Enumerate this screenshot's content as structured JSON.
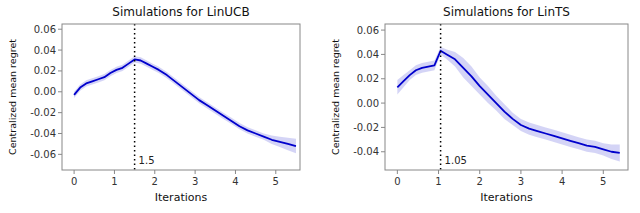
{
  "chart_data": [
    {
      "type": "line",
      "title": "Simulations for LinUCB",
      "x_label": "Iterations",
      "y_label": "Centralized mean regret",
      "x": [
        0.0,
        0.15,
        0.3,
        0.45,
        0.6,
        0.75,
        0.9,
        1.05,
        1.2,
        1.35,
        1.5,
        1.65,
        1.8,
        1.95,
        2.1,
        2.3,
        2.5,
        2.7,
        2.9,
        3.1,
        3.3,
        3.5,
        3.7,
        3.9,
        4.1,
        4.3,
        4.5,
        4.7,
        4.9,
        5.1,
        5.3,
        5.5
      ],
      "series": [
        {
          "type": "band",
          "color": "#aaaaee",
          "values": [
            -0.003,
            0.004,
            0.008,
            0.01,
            0.012,
            0.014,
            0.018,
            0.021,
            0.023,
            0.027,
            0.031,
            0.03,
            0.027,
            0.024,
            0.021,
            0.016,
            0.01,
            0.004,
            -0.002,
            -0.008,
            -0.013,
            -0.018,
            -0.023,
            -0.028,
            -0.033,
            -0.037,
            -0.04,
            -0.043,
            -0.046,
            -0.048,
            -0.05,
            -0.052
          ],
          "std": [
            0.003,
            0.003,
            0.003,
            0.003,
            0.003,
            0.003,
            0.003,
            0.003,
            0.003,
            0.003,
            0.003,
            0.003,
            0.003,
            0.003,
            0.003,
            0.003,
            0.003,
            0.003,
            0.003,
            0.003,
            0.003,
            0.003,
            0.003,
            0.003,
            0.003,
            0.003,
            0.003,
            0.003,
            0.004,
            0.005,
            0.006,
            0.007
          ]
        },
        {
          "type": "line",
          "color": "#0000cc",
          "values": [
            -0.003,
            0.004,
            0.008,
            0.01,
            0.012,
            0.014,
            0.018,
            0.021,
            0.023,
            0.027,
            0.031,
            0.03,
            0.027,
            0.024,
            0.021,
            0.016,
            0.01,
            0.004,
            -0.002,
            -0.008,
            -0.013,
            -0.018,
            -0.023,
            -0.028,
            -0.033,
            -0.037,
            -0.04,
            -0.043,
            -0.046,
            -0.048,
            -0.05,
            -0.052
          ]
        }
      ],
      "annotations": [
        {
          "x": 1.5,
          "label": "1.5",
          "color": "black",
          "line_style": "dotted"
        }
      ],
      "xlim": [
        -0.3,
        5.6
      ],
      "ylim": [
        -0.075,
        0.065
      ],
      "xticks": [
        0,
        1,
        2,
        3,
        4,
        5
      ],
      "yticks": [
        -0.06,
        -0.04,
        -0.02,
        {
          "value": 0,
          "label": "0.00"
        },
        0.02,
        0.04,
        0.06
      ],
      "grid": false
    },
    {
      "type": "line",
      "title": "Simulations for LinTS",
      "x_label": "Iterations",
      "y_label": "Centralized mean regret",
      "x": [
        0.0,
        0.15,
        0.3,
        0.45,
        0.6,
        0.75,
        0.9,
        1.05,
        1.2,
        1.4,
        1.6,
        1.8,
        2.0,
        2.2,
        2.4,
        2.6,
        2.8,
        3.0,
        3.2,
        3.4,
        3.6,
        3.8,
        4.0,
        4.2,
        4.4,
        4.6,
        4.8,
        5.0,
        5.2,
        5.4
      ],
      "series": [
        {
          "type": "band",
          "color": "#aaaaee",
          "values": [
            0.013,
            0.018,
            0.023,
            0.027,
            0.029,
            0.03,
            0.031,
            0.043,
            0.04,
            0.036,
            0.029,
            0.022,
            0.014,
            0.007,
            0.0,
            -0.007,
            -0.013,
            -0.018,
            -0.021,
            -0.023,
            -0.025,
            -0.027,
            -0.029,
            -0.031,
            -0.033,
            -0.035,
            -0.036,
            -0.038,
            -0.04,
            -0.041
          ],
          "std": [
            0.006,
            0.005,
            0.004,
            0.004,
            0.004,
            0.004,
            0.004,
            0.003,
            0.004,
            0.006,
            0.008,
            0.008,
            0.007,
            0.007,
            0.006,
            0.006,
            0.005,
            0.005,
            0.005,
            0.005,
            0.005,
            0.005,
            0.005,
            0.005,
            0.005,
            0.005,
            0.005,
            0.005,
            0.006,
            0.007
          ]
        },
        {
          "type": "line",
          "color": "#0000cc",
          "values": [
            0.013,
            0.018,
            0.023,
            0.027,
            0.029,
            0.03,
            0.031,
            0.043,
            0.04,
            0.036,
            0.029,
            0.022,
            0.014,
            0.007,
            0.0,
            -0.007,
            -0.013,
            -0.018,
            -0.021,
            -0.023,
            -0.025,
            -0.027,
            -0.029,
            -0.031,
            -0.033,
            -0.035,
            -0.036,
            -0.038,
            -0.04,
            -0.041
          ]
        }
      ],
      "annotations": [
        {
          "x": 1.05,
          "label": "1.05",
          "color": "black",
          "line_style": "dotted"
        }
      ],
      "xlim": [
        -0.3,
        5.6
      ],
      "ylim": [
        -0.055,
        0.065
      ],
      "xticks": [
        0,
        1,
        2,
        3,
        4,
        5
      ],
      "yticks": [
        -0.04,
        -0.02,
        {
          "value": 0,
          "label": "0.00"
        },
        0.02,
        0.04,
        0.06
      ],
      "grid": false
    }
  ]
}
